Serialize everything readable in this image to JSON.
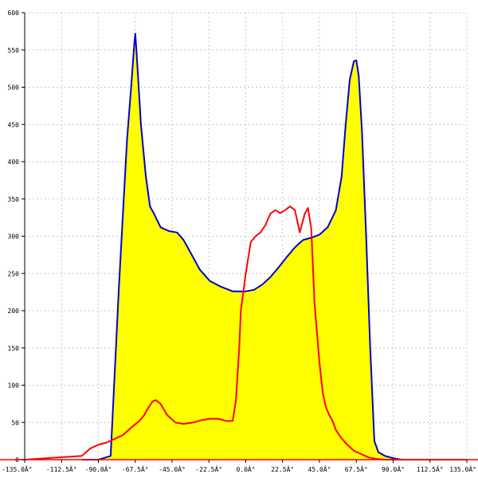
{
  "chart_data": {
    "type": "area",
    "title": "",
    "xlabel": "",
    "ylabel": "",
    "xlim": [
      -135,
      135
    ],
    "ylim": [
      0,
      600
    ],
    "grid": true,
    "x_ticks": [
      -135,
      -112.5,
      -90,
      -67.5,
      -45,
      -22.5,
      0,
      22.5,
      45,
      67.5,
      90,
      112.5,
      135
    ],
    "x_tick_labels": [
      "-135.0Â°",
      "-112.5Â°",
      "-90.0Â°",
      "-67.5Â°",
      "-45.0Â°",
      "-22.5Â°",
      "0.0Â°",
      "22.5Â°",
      "45.0Â°",
      "67.5Â°",
      "90.0Â°",
      "112.5Â°",
      "135.0Â°"
    ],
    "y_ticks": [
      0,
      50,
      100,
      150,
      200,
      250,
      300,
      350,
      400,
      450,
      500,
      550,
      600
    ],
    "y_tick_labels": [
      "0",
      "50",
      "100",
      "150",
      "200",
      "250",
      "300",
      "350",
      "400",
      "450",
      "500",
      "550",
      "600"
    ],
    "series": [
      {
        "color": "#0000cc",
        "fill": "#ffff00",
        "x": [
          -100,
          -95,
          -90,
          -82.5,
          -77.5,
          -75,
          -72.5,
          -70,
          -68,
          -67.5,
          -66.5,
          -64,
          -61,
          -58.5,
          -56,
          -52,
          -47,
          -42,
          -38,
          -33,
          -28,
          -22,
          -15,
          -8,
          -2,
          0,
          5,
          10,
          15,
          20,
          25,
          30,
          35,
          40,
          45,
          50,
          55,
          58.5,
          61,
          63.5,
          66,
          67.5,
          69,
          71,
          73.5,
          76,
          78.5,
          81,
          85,
          90,
          95,
          100,
          101
        ],
        "values": [
          0,
          0,
          0,
          5,
          230,
          330,
          430,
          500,
          560,
          572,
          540,
          450,
          380,
          340,
          330,
          312,
          307,
          305,
          295,
          275,
          255,
          240,
          232,
          226,
          226,
          226,
          228,
          235,
          245,
          258,
          272,
          285,
          295,
          298,
          302,
          312,
          335,
          380,
          450,
          510,
          535,
          536,
          515,
          440,
          300,
          150,
          25,
          10,
          5,
          2,
          0,
          0,
          0
        ]
      },
      {
        "color": "#ff0000",
        "x": [
          -135,
          -100,
          -95,
          -90,
          -85,
          -80,
          -75,
          -70,
          -65,
          -62,
          -60,
          -57,
          -55,
          -52,
          -48,
          -43,
          -38,
          -32,
          -27,
          -22,
          -17,
          -12,
          -8,
          -6,
          -4,
          -3,
          0,
          3,
          6,
          9,
          12,
          15,
          18,
          21,
          24,
          27,
          30,
          33,
          36,
          38,
          40,
          42,
          45,
          47,
          49,
          51,
          53,
          55,
          58,
          62,
          66,
          70,
          75,
          80,
          85,
          90,
          95,
          101,
          135
        ],
        "values": [
          0,
          5,
          15,
          20,
          23,
          28,
          33,
          43,
          52,
          60,
          68,
          78,
          80,
          75,
          60,
          50,
          48,
          50,
          53,
          55,
          55,
          52,
          52,
          80,
          150,
          200,
          250,
          292,
          300,
          305,
          315,
          330,
          335,
          331,
          335,
          340,
          335,
          305,
          330,
          338,
          310,
          210,
          130,
          90,
          70,
          60,
          52,
          40,
          30,
          20,
          12,
          8,
          3,
          1,
          0,
          0,
          0,
          0,
          0
        ]
      }
    ]
  }
}
